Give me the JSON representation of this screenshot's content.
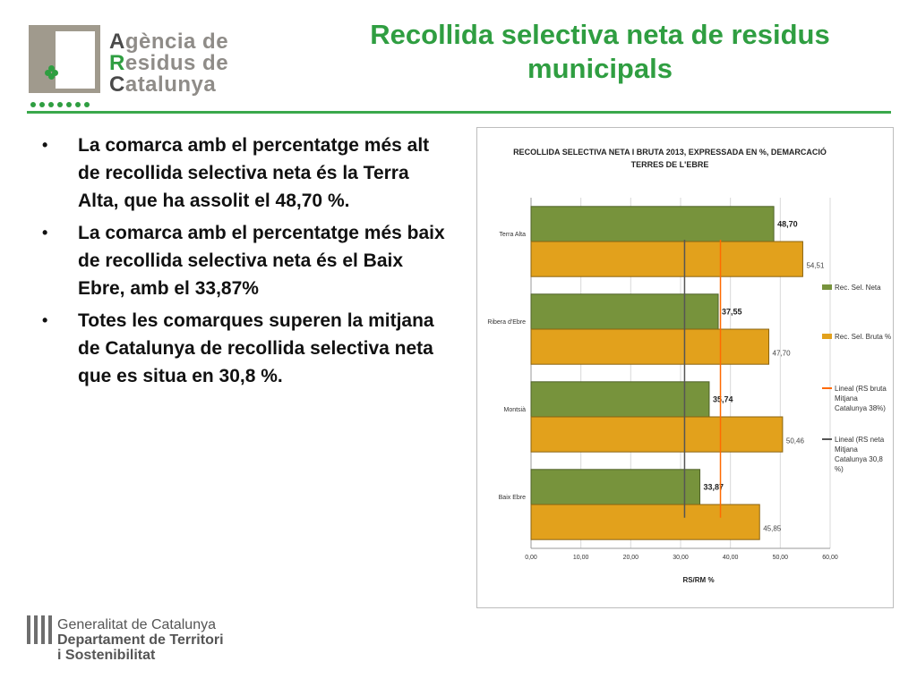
{
  "logo": {
    "line1_cap": "A",
    "line1_rest": "gència de",
    "line2_cap": "R",
    "line2_rest": "esidus de",
    "line3_cap": "C",
    "line3_rest": "atalunya"
  },
  "slide": {
    "title": "Recollida selectiva neta de residus municipals",
    "bullets": [
      "La comarca amb el percentatge més alt de recollida selectiva neta és la Terra Alta, que ha assolit el 48,70 %.",
      "La comarca amb el percentatge més baix de recollida selectiva neta és el Baix Ebre, amb el 33,87%",
      "Totes les comarques superen la mitjana de Catalunya de recollida selectiva neta que es situa en 30,8 %."
    ]
  },
  "footer": {
    "line1": "Generalitat de Catalunya",
    "line2": "Departament de Territori",
    "line3": "i Sostenibilitat"
  },
  "colors": {
    "accent": "#2f9e41",
    "neta": "#77933c",
    "bruta": "#e2a11c",
    "line_bruta": "#ff6a00",
    "line_neta": "#555555"
  },
  "chart_data": {
    "type": "bar",
    "orientation": "horizontal",
    "title": "RECOLLIDA SELECTIVA NETA I BRUTA 2013, EXPRESSADA EN %, DEMARCACIÓ TERRES DE L'EBRE",
    "categories": [
      "Terra Alta",
      "Ribera d'Ebre",
      "Montsià",
      "Baix Ebre"
    ],
    "series": [
      {
        "name": "Rec. Sel. Neta",
        "values": [
          48.7,
          37.55,
          35.74,
          33.87
        ],
        "labels": [
          "48,70",
          "37,55",
          "35,74",
          "33,87"
        ]
      },
      {
        "name": "Rec. Sel. Bruta %",
        "values": [
          54.51,
          47.7,
          50.46,
          45.85
        ],
        "labels": [
          "54,51",
          "47,70",
          "50,46",
          "45,85"
        ]
      }
    ],
    "reference_lines": [
      {
        "name": "Lineal (RS bruta Mitjana Catalunya 38%)",
        "value": 38
      },
      {
        "name": "Lineal (RS neta Mitjana Catalunya 30,8 %)",
        "value": 30.8
      }
    ],
    "xlabel": "RS/RM %",
    "xlim": [
      0,
      60
    ],
    "xticks": [
      0,
      10,
      20,
      30,
      40,
      50,
      60
    ],
    "xtick_labels": [
      "0,00",
      "10,00",
      "20,00",
      "30,00",
      "40,00",
      "50,00",
      "60,00"
    ],
    "legend": "right"
  }
}
